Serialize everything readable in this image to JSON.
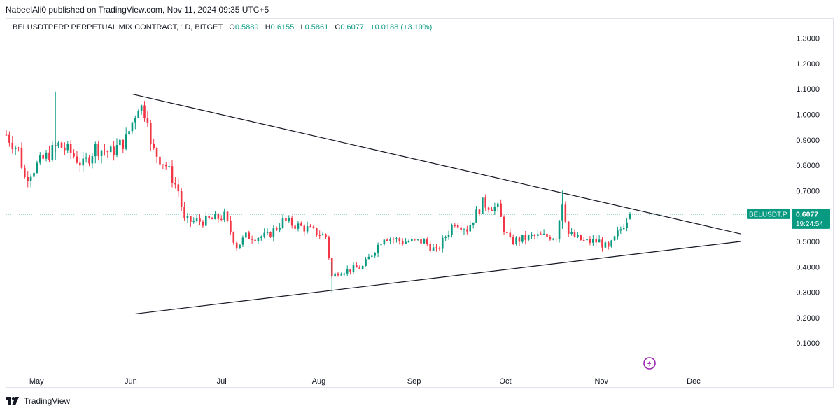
{
  "header": {
    "publisher_line": "NabeelAli0 published on TradingView.com, Nov 11, 2024 09:35 UTC+5"
  },
  "legend": {
    "symbol": "BELUSDTPERP PERPETUAL MIX CONTRACT, 1D, BITGET",
    "open_label": "O",
    "open": "0.5889",
    "high_label": "H",
    "high": "0.6155",
    "low_label": "L",
    "low": "0.5861",
    "close_label": "C",
    "close": "0.6077",
    "change": "+0.0188 (+3.19%)"
  },
  "price_tag": {
    "symbol": "BELUSDT.P",
    "price": "0.6077",
    "countdown": "19:24:54"
  },
  "footer": {
    "brand": "TradingView"
  },
  "colors": {
    "up": "#089981",
    "down": "#f23645",
    "line": "#131722",
    "price_line": "#089981",
    "axis_text": "#131722",
    "lightning": "#9c27b0"
  },
  "icons": [
    "tradingview-logo-icon",
    "lightning-icon"
  ],
  "chart_data": {
    "type": "candlestick",
    "timeframe": "1D",
    "y_axis": {
      "ticks": [
        "1.3000",
        "1.2000",
        "1.1000",
        "1.0000",
        "0.9000",
        "0.8000",
        "0.7000",
        "0.6000",
        "0.5000",
        "0.4000",
        "0.3000",
        "0.2000",
        "0.1000"
      ],
      "ylim": [
        0.04,
        1.34
      ]
    },
    "x_axis": {
      "ticks": [
        {
          "label": "May",
          "date": "2024-05-01"
        },
        {
          "label": "Jun",
          "date": "2024-06-01"
        },
        {
          "label": "Jul",
          "date": "2024-07-01"
        },
        {
          "label": "Aug",
          "date": "2024-08-01"
        },
        {
          "label": "Sep",
          "date": "2024-09-01"
        },
        {
          "label": "Oct",
          "date": "2024-10-01"
        },
        {
          "label": "Nov",
          "date": "2024-11-01"
        },
        {
          "label": "Dec",
          "date": "2024-12-01"
        }
      ],
      "xlim": [
        "2024-04-21",
        "2024-12-16"
      ]
    },
    "last_price": 0.6077,
    "anchors": [
      {
        "date": "2024-04-21",
        "close": 0.92
      },
      {
        "date": "2024-04-25",
        "close": 0.86
      },
      {
        "date": "2024-04-27",
        "close": 0.75
      },
      {
        "date": "2024-05-01",
        "close": 0.8
      },
      {
        "date": "2024-05-08",
        "close": 0.88
      },
      {
        "date": "2024-05-12",
        "close": 0.85
      },
      {
        "date": "2024-05-16",
        "close": 0.8
      },
      {
        "date": "2024-05-20",
        "close": 0.87
      },
      {
        "date": "2024-05-25",
        "close": 0.85
      },
      {
        "date": "2024-05-30",
        "close": 0.9
      },
      {
        "date": "2024-06-03",
        "close": 1.04
      },
      {
        "date": "2024-06-06",
        "close": 1.0
      },
      {
        "date": "2024-06-07",
        "close": 0.87
      },
      {
        "date": "2024-06-12",
        "close": 0.8
      },
      {
        "date": "2024-06-16",
        "close": 0.7
      },
      {
        "date": "2024-06-18",
        "close": 0.58
      },
      {
        "date": "2024-06-25",
        "close": 0.58
      },
      {
        "date": "2024-07-01",
        "close": 0.6
      },
      {
        "date": "2024-07-05",
        "close": 0.48
      },
      {
        "date": "2024-07-08",
        "close": 0.52
      },
      {
        "date": "2024-07-15",
        "close": 0.52
      },
      {
        "date": "2024-07-20",
        "close": 0.58
      },
      {
        "date": "2024-07-28",
        "close": 0.55
      },
      {
        "date": "2024-08-03",
        "close": 0.52
      },
      {
        "date": "2024-08-05",
        "close": 0.36
      },
      {
        "date": "2024-08-07",
        "close": 0.38
      },
      {
        "date": "2024-08-15",
        "close": 0.4
      },
      {
        "date": "2024-08-22",
        "close": 0.52
      },
      {
        "date": "2024-08-28",
        "close": 0.5
      },
      {
        "date": "2024-09-04",
        "close": 0.5
      },
      {
        "date": "2024-09-08",
        "close": 0.46
      },
      {
        "date": "2024-09-14",
        "close": 0.58
      },
      {
        "date": "2024-09-18",
        "close": 0.55
      },
      {
        "date": "2024-09-23",
        "close": 0.65
      },
      {
        "date": "2024-09-28",
        "close": 0.63
      },
      {
        "date": "2024-09-30",
        "close": 0.55
      },
      {
        "date": "2024-10-02",
        "close": 0.5
      },
      {
        "date": "2024-10-10",
        "close": 0.52
      },
      {
        "date": "2024-10-17",
        "close": 0.52
      },
      {
        "date": "2024-10-19",
        "close": 0.66
      },
      {
        "date": "2024-10-21",
        "close": 0.53
      },
      {
        "date": "2024-10-26",
        "close": 0.5
      },
      {
        "date": "2024-10-31",
        "close": 0.5
      },
      {
        "date": "2024-11-03",
        "close": 0.47
      },
      {
        "date": "2024-11-06",
        "close": 0.53
      },
      {
        "date": "2024-11-09",
        "close": 0.59
      },
      {
        "date": "2024-11-10",
        "close": 0.6077
      }
    ],
    "trendlines": [
      {
        "name": "descending resistance",
        "from": {
          "date": "2024-06-01",
          "price": 1.08
        },
        "to": {
          "date": "2024-12-16",
          "price": 0.53
        }
      },
      {
        "name": "ascending support",
        "from": {
          "date": "2024-06-02",
          "price": 0.215
        },
        "to": {
          "date": "2024-12-16",
          "price": 0.5
        }
      }
    ],
    "grid": false
  }
}
